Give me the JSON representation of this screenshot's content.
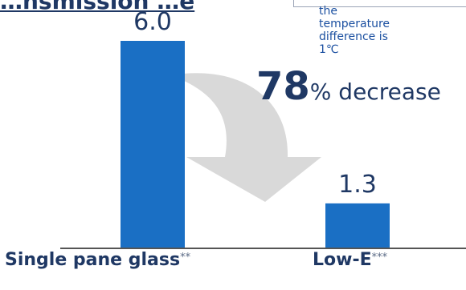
{
  "chart_data": {
    "type": "bar",
    "title": "…nsmission …e",
    "categories": [
      "Single pane  glass",
      "Low-E"
    ],
    "category_marks": [
      "**",
      "***"
    ],
    "values": [
      6.0,
      1.3
    ],
    "value_labels": [
      "6.0",
      "1.3"
    ],
    "ylim": [
      0,
      6.0
    ],
    "grid": false,
    "legend": "none",
    "annotation": {
      "note": "the\ntemperature\ndifference is\n1℃",
      "decrease_value": "78",
      "decrease_text": "% decrease"
    },
    "colors": {
      "bar": "#1a6fc4",
      "arrow": "#d9d9d9",
      "axis": "#555555",
      "text": "#1f3864",
      "note_text": "#1a4fa0"
    }
  }
}
